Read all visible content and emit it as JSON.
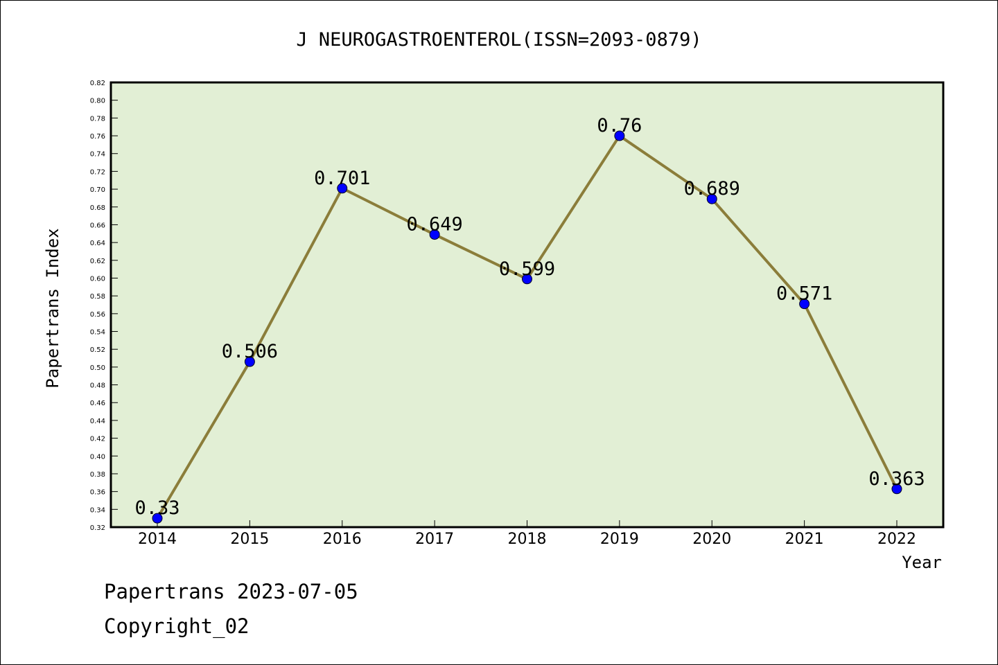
{
  "chart_data": {
    "type": "line",
    "title": "J NEUROGASTROENTEROL(ISSN=2093-0879)",
    "xlabel": "Year",
    "ylabel": "Papertrans Index",
    "categories": [
      "2014",
      "2015",
      "2016",
      "2017",
      "2018",
      "2019",
      "2020",
      "2021",
      "2022"
    ],
    "values": [
      0.33,
      0.506,
      0.701,
      0.649,
      0.599,
      0.76,
      0.689,
      0.571,
      0.363
    ],
    "value_labels": [
      "0.33",
      "0.506",
      "0.701",
      "0.649",
      "0.599",
      "0.76",
      "0.689",
      "0.571",
      "0.363"
    ],
    "ylim": [
      0.32,
      0.82
    ],
    "ytick_step": 0.02,
    "ytick_labels": [
      "0.32",
      "0.34",
      "0.36",
      "0.38",
      "0.40",
      "0.42",
      "0.44",
      "0.46",
      "0.48",
      "0.50",
      "0.52",
      "0.54",
      "0.56",
      "0.58",
      "0.60",
      "0.62",
      "0.64",
      "0.66",
      "0.68",
      "0.70",
      "0.72",
      "0.74",
      "0.76",
      "0.78",
      "0.80",
      "0.82"
    ],
    "grid": false,
    "colors": {
      "plot_background": "#e2efd5",
      "line": "#8b7d3a",
      "marker": "#0000ff"
    }
  },
  "footer": {
    "date_line": "Papertrans 2023-07-05",
    "copyright": "Copyright_02"
  }
}
